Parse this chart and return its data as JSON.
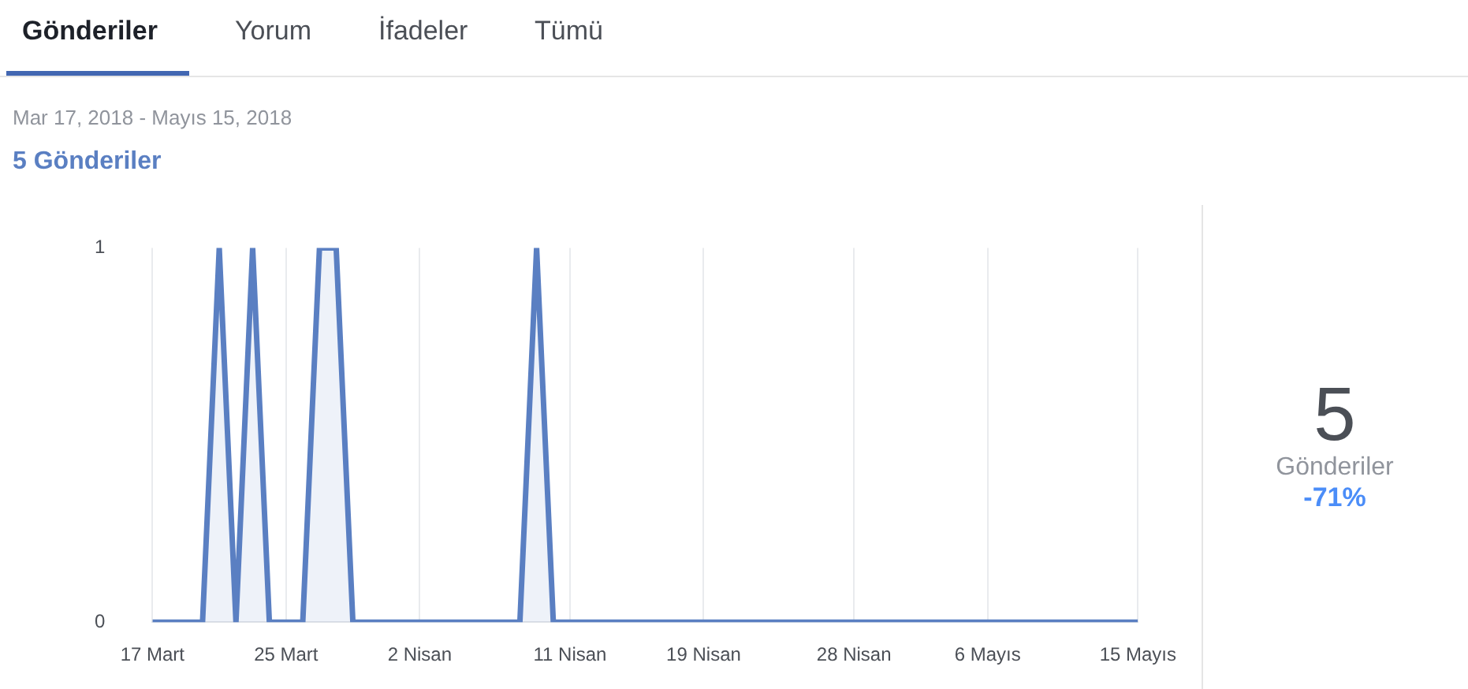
{
  "chart_data": {
    "type": "area",
    "title": "5 Gönderiler",
    "subtitle": "Mar 17, 2018 - Mayıs 15, 2018",
    "annotations": [
      "Gönderiler",
      "Yorum",
      "İfadeler",
      "Tümü",
      "5",
      "Gönderiler",
      "-71%"
    ],
    "x": [
      "2018-03-17",
      "2018-03-18",
      "2018-03-19",
      "2018-03-20",
      "2018-03-21",
      "2018-03-22",
      "2018-03-23",
      "2018-03-24",
      "2018-03-25",
      "2018-03-26",
      "2018-03-27",
      "2018-03-28",
      "2018-03-29",
      "2018-03-30",
      "2018-03-31",
      "2018-04-01",
      "2018-04-02",
      "2018-04-03",
      "2018-04-04",
      "2018-04-05",
      "2018-04-06",
      "2018-04-07",
      "2018-04-08",
      "2018-04-09",
      "2018-04-10",
      "2018-04-11",
      "2018-04-12",
      "2018-04-13",
      "2018-04-14",
      "2018-04-15",
      "2018-04-16",
      "2018-04-17",
      "2018-04-18",
      "2018-04-19",
      "2018-04-20",
      "2018-04-21",
      "2018-04-22",
      "2018-04-23",
      "2018-04-24",
      "2018-04-25",
      "2018-04-26",
      "2018-04-27",
      "2018-04-28",
      "2018-04-29",
      "2018-04-30",
      "2018-05-01",
      "2018-05-02",
      "2018-05-03",
      "2018-05-04",
      "2018-05-05",
      "2018-05-06",
      "2018-05-07",
      "2018-05-08",
      "2018-05-09",
      "2018-05-10",
      "2018-05-11",
      "2018-05-12",
      "2018-05-13",
      "2018-05-14",
      "2018-05-15"
    ],
    "series": [
      {
        "color": "#5a7fc2",
        "values": [
          0,
          0,
          0,
          0,
          1,
          0,
          1,
          0,
          0,
          0,
          1,
          1,
          0,
          0,
          0,
          0,
          0,
          0,
          0,
          0,
          0,
          0,
          0,
          1,
          0,
          0,
          0,
          0,
          0,
          0,
          0,
          0,
          0,
          0,
          0,
          0,
          0,
          0,
          0,
          0,
          0,
          0,
          0,
          0,
          0,
          0,
          0,
          0,
          0,
          0,
          0,
          0,
          0,
          0,
          0,
          0,
          0,
          0,
          0,
          0
        ]
      }
    ],
    "xlim": [
      "2018-03-17",
      "2018-05-15"
    ],
    "xticks": [
      {
        "value": "2018-03-17",
        "label": "17 Mart"
      },
      {
        "value": "2018-03-25",
        "label": "25 Mart"
      },
      {
        "value": "2018-04-02",
        "label": "2 Nisan"
      },
      {
        "value": "2018-04-11",
        "label": "11 Nisan"
      },
      {
        "value": "2018-04-19",
        "label": "19 Nisan"
      },
      {
        "value": "2018-04-28",
        "label": "28 Nisan"
      },
      {
        "value": "2018-05-06",
        "label": "6 Mayıs"
      },
      {
        "value": "2018-05-15",
        "label": "15 Mayıs"
      }
    ],
    "ylim": [
      0,
      1
    ],
    "yticks": [
      0,
      1
    ],
    "grid": "x",
    "legend": false,
    "marker": "none",
    "line_style": "solid"
  }
}
